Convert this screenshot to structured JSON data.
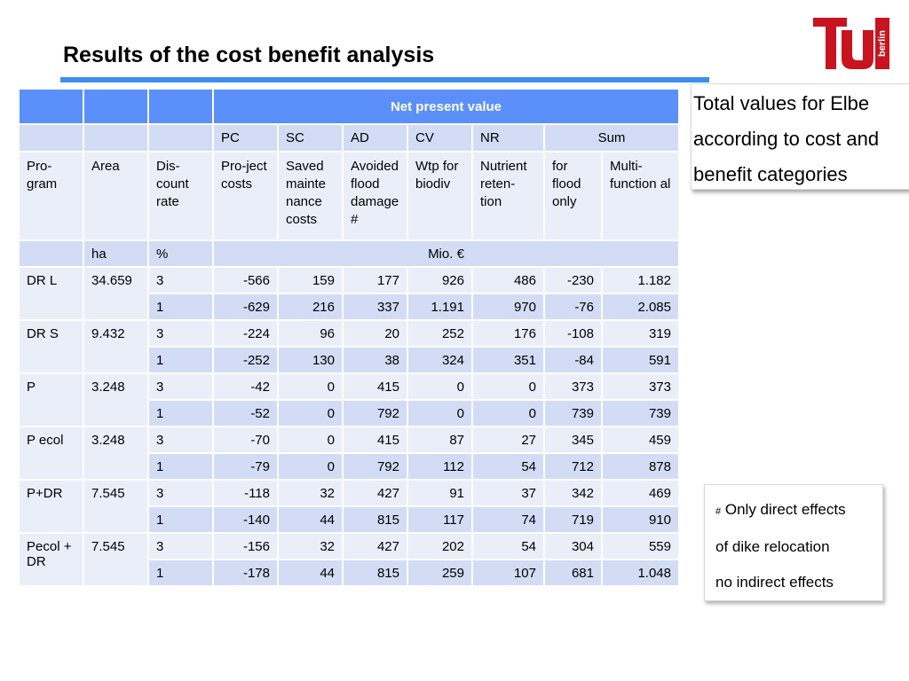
{
  "slide": {
    "title": "Results of the cost benefit analysis",
    "logo_text": "berlin",
    "colors": {
      "accent_blue": "#3d8ef2",
      "header_blue": "#5b8ff9",
      "row_light": "#eaeef9",
      "row_mid": "#d3dcf5",
      "logo_red": "#c8141e"
    }
  },
  "note": {
    "text": "Total values for Elbe according to cost and benefit categories"
  },
  "footnote": {
    "hash": "#",
    "line1": "Only direct effects",
    "line2": "of  dike relocation",
    "line3": "no indirect effects"
  },
  "table": {
    "group_header": "Net present value",
    "abbr": [
      "PC",
      "SC",
      "AD",
      "CV",
      "NR",
      "Sum"
    ],
    "labels": {
      "program": "Pro-gram",
      "area": "Area",
      "rate": "Dis-count rate",
      "pc": "Pro-ject costs",
      "sc": "Saved mainte nance costs",
      "ad": "Avoided flood damage #",
      "cv": "Wtp for biodiv",
      "nr": "Nutrient reten-tion",
      "flood": "for flood only",
      "multi": "Multi-function al"
    },
    "units": {
      "area": "ha",
      "rate": "%",
      "money": "Mio. €"
    },
    "programs": [
      {
        "name": "DR L",
        "area": "34.659",
        "rows": [
          {
            "rate": "3",
            "pc": "-566",
            "sc": "159",
            "ad": "177",
            "cv": "926",
            "nr": "486",
            "flood": "-230",
            "multi": "1.182"
          },
          {
            "rate": "1",
            "pc": "-629",
            "sc": "216",
            "ad": "337",
            "cv": "1.191",
            "nr": "970",
            "flood": "-76",
            "multi": "2.085"
          }
        ]
      },
      {
        "name": "DR S",
        "area": "9.432",
        "rows": [
          {
            "rate": "3",
            "pc": "-224",
            "sc": "96",
            "ad": "20",
            "cv": "252",
            "nr": "176",
            "flood": "-108",
            "multi": "319"
          },
          {
            "rate": "1",
            "pc": "-252",
            "sc": "130",
            "ad": "38",
            "cv": "324",
            "nr": "351",
            "flood": "-84",
            "multi": "591"
          }
        ]
      },
      {
        "name": "P",
        "area": "3.248",
        "rows": [
          {
            "rate": "3",
            "pc": "-42",
            "sc": "0",
            "ad": "415",
            "cv": "0",
            "nr": "0",
            "flood": "373",
            "multi": "373"
          },
          {
            "rate": "1",
            "pc": "-52",
            "sc": "0",
            "ad": "792",
            "cv": "0",
            "nr": "0",
            "flood": "739",
            "multi": "739"
          }
        ]
      },
      {
        "name": "P ecol",
        "area": "3.248",
        "rows": [
          {
            "rate": "3",
            "pc": "-70",
            "sc": "0",
            "ad": "415",
            "cv": "87",
            "nr": "27",
            "flood": "345",
            "multi": "459"
          },
          {
            "rate": "1",
            "pc": "-79",
            "sc": "0",
            "ad": "792",
            "cv": "112",
            "nr": "54",
            "flood": "712",
            "multi": "878"
          }
        ]
      },
      {
        "name": "P+DR",
        "area": "7.545",
        "rows": [
          {
            "rate": "3",
            "pc": "-118",
            "sc": "32",
            "ad": "427",
            "cv": "91",
            "nr": "37",
            "flood": "342",
            "multi": "469"
          },
          {
            "rate": "1",
            "pc": "-140",
            "sc": "44",
            "ad": "815",
            "cv": "117",
            "nr": "74",
            "flood": "719",
            "multi": "910"
          }
        ]
      },
      {
        "name": "Pecol + DR",
        "area": "7.545",
        "rows": [
          {
            "rate": "3",
            "pc": "-156",
            "sc": "32",
            "ad": "427",
            "cv": "202",
            "nr": "54",
            "flood": "304",
            "multi": "559"
          },
          {
            "rate": "1",
            "pc": "-178",
            "sc": "44",
            "ad": "815",
            "cv": "259",
            "nr": "107",
            "flood": "681",
            "multi": "1.048"
          }
        ]
      }
    ]
  }
}
